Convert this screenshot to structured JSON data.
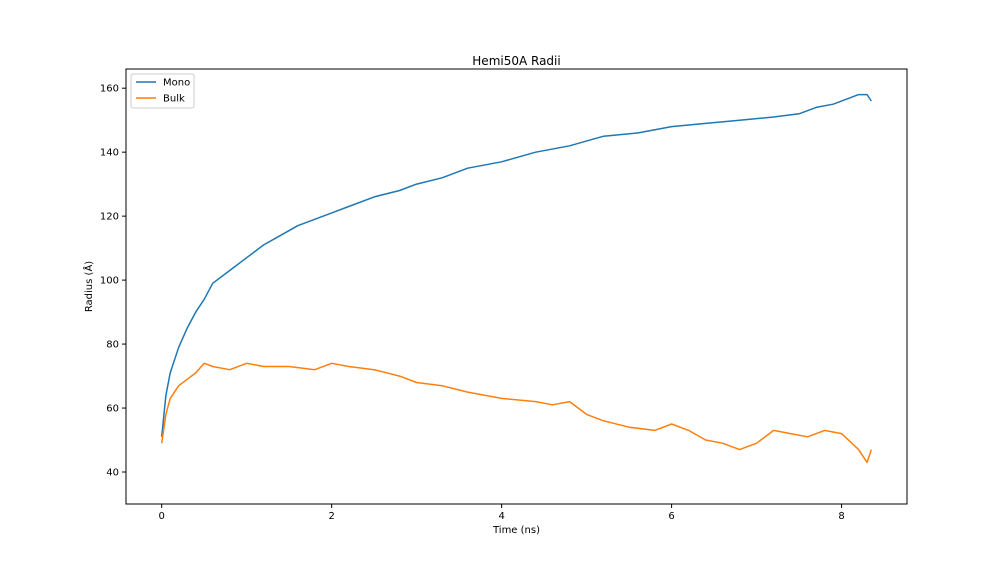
{
  "chart_data": {
    "type": "line",
    "title": "Hemi50A Radii",
    "xlabel": "Time (ns)",
    "ylabel": "Radius (Å)",
    "xlim": [
      -0.42,
      8.77
    ],
    "ylim": [
      30,
      166
    ],
    "xticks": [
      0,
      2,
      4,
      6,
      8
    ],
    "yticks": [
      40,
      60,
      80,
      100,
      120,
      140,
      160
    ],
    "grid": false,
    "legend_position": "top-left",
    "series": [
      {
        "name": "Mono",
        "color": "#1f77b4",
        "x": [
          0,
          0.05,
          0.1,
          0.2,
          0.3,
          0.4,
          0.5,
          0.6,
          0.8,
          1.0,
          1.2,
          1.4,
          1.6,
          1.8,
          2.0,
          2.2,
          2.5,
          2.8,
          3.0,
          3.3,
          3.6,
          4.0,
          4.4,
          4.8,
          5.2,
          5.6,
          6.0,
          6.4,
          6.8,
          7.2,
          7.5,
          7.7,
          7.9,
          8.1,
          8.2,
          8.3,
          8.35
        ],
        "y": [
          51,
          64,
          71,
          79,
          85,
          90,
          94,
          99,
          103,
          107,
          111,
          114,
          117,
          119,
          121,
          123,
          126,
          128,
          130,
          132,
          135,
          137,
          140,
          142,
          145,
          146,
          148,
          149,
          150,
          151,
          152,
          154,
          155,
          157,
          158,
          158,
          156
        ]
      },
      {
        "name": "Bulk",
        "color": "#ff7f0e",
        "x": [
          0,
          0.05,
          0.1,
          0.2,
          0.3,
          0.4,
          0.5,
          0.6,
          0.8,
          1.0,
          1.2,
          1.5,
          1.8,
          2.0,
          2.2,
          2.5,
          2.8,
          3.0,
          3.3,
          3.6,
          4.0,
          4.4,
          4.6,
          4.8,
          5.0,
          5.2,
          5.5,
          5.8,
          6.0,
          6.2,
          6.4,
          6.6,
          6.8,
          7.0,
          7.2,
          7.4,
          7.6,
          7.8,
          8.0,
          8.2,
          8.3,
          8.35
        ],
        "y": [
          49,
          58,
          63,
          67,
          69,
          71,
          74,
          73,
          72,
          74,
          73,
          73,
          72,
          74,
          73,
          72,
          70,
          68,
          67,
          65,
          63,
          62,
          61,
          62,
          58,
          56,
          54,
          53,
          55,
          53,
          50,
          49,
          47,
          49,
          53,
          52,
          51,
          53,
          52,
          47,
          43,
          47
        ]
      }
    ]
  }
}
